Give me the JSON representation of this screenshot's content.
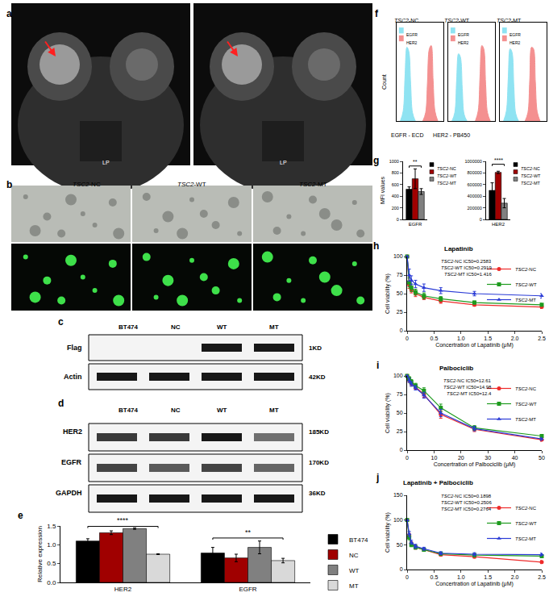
{
  "mri": {
    "panel": "a",
    "images": [
      {
        "label": "LP"
      },
      {
        "label": "LP"
      }
    ]
  },
  "microscopy": {
    "panel": "b",
    "columns": [
      "TSC2-NC",
      "TSC2-WT",
      "TSC2-MT"
    ]
  },
  "blots": [
    {
      "panel": "c",
      "lanes": [
        "BT474",
        "NC",
        "WT",
        "MT"
      ],
      "rows": [
        {
          "name": "Flag",
          "size": "1KD",
          "bands": [
            0,
            0,
            1,
            1
          ]
        },
        {
          "name": "Actin",
          "size": "42KD",
          "bands": [
            1,
            1,
            1,
            1
          ]
        }
      ]
    },
    {
      "panel": "d",
      "lanes": [
        "BT474",
        "NC",
        "WT",
        "MT"
      ],
      "rows": [
        {
          "name": "HER2",
          "size": "185KD",
          "bands": [
            0.85,
            0.85,
            1,
            0.6
          ]
        },
        {
          "name": "EGFR",
          "size": "170KD",
          "bands": [
            0.8,
            0.7,
            0.8,
            0.65
          ]
        },
        {
          "name": "GAPDH",
          "size": "36KD",
          "bands": [
            1,
            1,
            1,
            1
          ]
        }
      ]
    }
  ],
  "chart_data": [
    {
      "panel": "e",
      "type": "bar",
      "categories": [
        "HER2",
        "EGFR"
      ],
      "ylabel": "Relative expression",
      "ylim": [
        0,
        1.5
      ],
      "yticks": [
        {
          "value": 0,
          "label": "0.0"
        },
        {
          "value": 0.5,
          "label": "0.5"
        },
        {
          "value": 1,
          "label": "1.0"
        },
        {
          "value": 1.5,
          "label": "1.5"
        }
      ],
      "series": [
        {
          "name": "BT474",
          "color": "#000000",
          "values": [
            1.1,
            0.78
          ],
          "errors": [
            0.06,
            0.15
          ]
        },
        {
          "name": "NC",
          "color": "#a00000",
          "values": [
            1.32,
            0.65
          ],
          "errors": [
            0.05,
            0.1
          ]
        },
        {
          "name": "WT",
          "color": "#808080",
          "values": [
            1.43,
            0.93
          ],
          "errors": [
            0.02,
            0.17
          ]
        },
        {
          "name": "MT",
          "color": "#d9d9d9",
          "values": [
            0.75,
            0.58
          ],
          "errors": [
            0.01,
            0.06
          ]
        }
      ],
      "annotations": [
        {
          "text": "****",
          "category": "HER2",
          "y": 1.49
        },
        {
          "text": "**",
          "category": "EGFR",
          "y": 1.18
        }
      ],
      "legend": "right"
    },
    {
      "panel": "f",
      "type": "area",
      "ylabel": "Count",
      "xlabel": "EGFR - ECD      HER2 - PB450",
      "xlim": [
        1,
        6
      ],
      "ylim": [
        0,
        120
      ],
      "tick_labels": false,
      "legend": "upper left",
      "panels": [
        {
          "title": "TSC2-NC",
          "series": [
            {
              "name": "EGFR",
              "color": "#8fe3f2",
              "x": [
                1.4,
                1.7,
                1.9,
                2.1,
                2.3,
                2.5,
                2.7,
                3.0
              ],
              "values": [
                0,
                12,
                55,
                90,
                85,
                45,
                10,
                0
              ]
            },
            {
              "name": "HER2",
              "color": "#f49090",
              "x": [
                3.8,
                4.1,
                4.3,
                4.5,
                4.7,
                4.9,
                5.1,
                5.4
              ],
              "values": [
                0,
                10,
                48,
                88,
                92,
                50,
                12,
                0
              ]
            }
          ]
        },
        {
          "title": "TSC2-WT",
          "series": [
            {
              "name": "EGFR",
              "color": "#8fe3f2",
              "x": [
                1.4,
                1.7,
                1.9,
                2.1,
                2.3,
                2.5,
                2.7,
                3.0
              ],
              "values": [
                0,
                10,
                50,
                82,
                78,
                40,
                8,
                0
              ]
            },
            {
              "name": "HER2",
              "color": "#f49090",
              "x": [
                3.9,
                4.2,
                4.4,
                4.6,
                4.8,
                5.0,
                5.2,
                5.5
              ],
              "values": [
                0,
                12,
                55,
                92,
                88,
                45,
                10,
                0
              ]
            }
          ]
        },
        {
          "title": "TSC2-MT",
          "series": [
            {
              "name": "EGFR",
              "color": "#8fe3f2",
              "x": [
                1.4,
                1.7,
                1.9,
                2.1,
                2.3,
                2.5,
                2.7,
                3.0
              ],
              "values": [
                0,
                12,
                52,
                88,
                84,
                42,
                9,
                0
              ]
            },
            {
              "name": "HER2",
              "color": "#f49090",
              "x": [
                3.7,
                4.0,
                4.2,
                4.4,
                4.6,
                4.8,
                5.0,
                5.3
              ],
              "values": [
                0,
                10,
                50,
                90,
                88,
                48,
                11,
                0
              ]
            }
          ]
        }
      ]
    },
    {
      "panel": "g",
      "type": "bar",
      "categories": [
        "EGFR"
      ],
      "ylabel": "MFI values",
      "ylim": [
        0,
        1000
      ],
      "yticks": [
        0,
        200,
        400,
        600,
        800,
        1000
      ],
      "series": [
        {
          "name": "TSC2-NC",
          "color": "#000000",
          "values": [
            520
          ],
          "errors": [
            40
          ]
        },
        {
          "name": "TSC2-WT",
          "color": "#a00000",
          "values": [
            700
          ],
          "errors": [
            170
          ]
        },
        {
          "name": "TSC2-MT",
          "color": "#808080",
          "values": [
            480
          ],
          "errors": [
            50
          ]
        }
      ],
      "annotations": [
        {
          "text": "**",
          "category": "EGFR",
          "y": 920
        }
      ],
      "legend": "right"
    },
    {
      "panel": "g",
      "type": "bar",
      "categories": [
        "HER2"
      ],
      "ylim": [
        0,
        1000000
      ],
      "yticks": [
        0,
        200000,
        400000,
        600000,
        800000,
        1000000
      ],
      "series": [
        {
          "name": "TSC2-NC",
          "color": "#000000",
          "values": [
            500000
          ],
          "errors": [
            130000
          ]
        },
        {
          "name": "TSC2-WT",
          "color": "#a00000",
          "values": [
            810000
          ],
          "errors": [
            20000
          ]
        },
        {
          "name": "TSC2-MT",
          "color": "#808080",
          "values": [
            280000
          ],
          "errors": [
            80000
          ]
        }
      ],
      "annotations": [
        {
          "text": "****",
          "category": "HER2",
          "y": 950000
        }
      ],
      "legend": "right"
    },
    {
      "panel": "h",
      "type": "line",
      "title": "Lapatinib",
      "xlabel": "Concertration of Lapatinib (μM)",
      "ylabel": "Cell viability (%)",
      "x": [
        0,
        0.039,
        0.078,
        0.156,
        0.3125,
        0.625,
        1.25,
        2.5
      ],
      "xlim": [
        0,
        2.5
      ],
      "xticks": [
        0,
        0.5,
        {
          "value": 1,
          "label": "1.0"
        },
        1.5,
        {
          "value": 2,
          "label": "2.0"
        },
        2.5
      ],
      "ylim": [
        0,
        100
      ],
      "yticks": [
        0,
        25,
        50,
        75,
        100
      ],
      "series": [
        {
          "name": "TSC2-NC",
          "color": "#ee2a2a",
          "marker": "circle",
          "values": [
            100,
            62,
            55,
            50,
            45,
            40,
            35,
            32
          ],
          "errors": [
            0,
            5,
            4,
            4,
            3,
            3,
            2,
            2
          ]
        },
        {
          "name": "TSC2-WT",
          "color": "#1e9b1e",
          "marker": "square",
          "values": [
            100,
            65,
            58,
            52,
            47,
            43,
            38,
            35
          ],
          "errors": [
            0,
            6,
            5,
            4,
            4,
            3,
            2,
            2
          ]
        },
        {
          "name": "TSC2-MT",
          "color": "#2a3bd6",
          "marker": "triangle-up",
          "values": [
            100,
            75,
            68,
            63,
            58,
            54,
            50,
            47
          ],
          "errors": [
            0,
            8,
            6,
            5,
            5,
            4,
            3,
            3
          ]
        }
      ],
      "annotations": [
        "TSC2-NC IC50=0.2583",
        "TSC2-WT IC50=0.2919",
        "TSC2-MT IC50=1.416"
      ],
      "legend": "upper right"
    },
    {
      "panel": "i",
      "type": "line",
      "title": "Palbociclib",
      "xlabel": "Concertration of Palbociclib (μM)",
      "ylabel": "Cell viability (%)",
      "x": [
        0,
        0.78125,
        1.5625,
        3.125,
        6.25,
        12.5,
        25,
        50
      ],
      "xlim": [
        0,
        50
      ],
      "xticks": [
        0,
        10,
        20,
        30,
        40,
        50
      ],
      "ylim": [
        0,
        100
      ],
      "yticks": [
        0,
        25,
        50,
        75,
        100
      ],
      "series": [
        {
          "name": "TSC2-NC",
          "color": "#ee2a2a",
          "marker": "circle",
          "values": [
            100,
            95,
            90,
            85,
            75,
            48,
            28,
            14
          ],
          "errors": [
            0,
            3,
            3,
            3,
            4,
            5,
            3,
            2
          ]
        },
        {
          "name": "TSC2-WT",
          "color": "#1e9b1e",
          "marker": "square",
          "values": [
            100,
            96,
            92,
            87,
            80,
            57,
            30,
            19
          ],
          "errors": [
            0,
            3,
            3,
            3,
            4,
            5,
            3,
            2
          ]
        },
        {
          "name": "TSC2-MT",
          "color": "#2a3bd6",
          "marker": "triangle-up",
          "values": [
            100,
            94,
            89,
            84,
            74,
            50,
            29,
            15
          ],
          "errors": [
            0,
            3,
            3,
            3,
            4,
            5,
            3,
            2
          ]
        }
      ],
      "annotations": [
        "TSC2-NC IC50=12.61",
        "TSC2-WT IC50=14.98",
        "TSC2-MT IC50=12.4"
      ],
      "legend": "upper right"
    },
    {
      "panel": "j",
      "type": "line",
      "title": "Lapatinib + Palbociclib",
      "xlabel": "Concertration of Lapatinib (μM)",
      "ylabel": "Cell viability (%)",
      "x": [
        0,
        0.039,
        0.078,
        0.156,
        0.3125,
        0.625,
        1.25,
        2.5
      ],
      "xlim": [
        0,
        2.5
      ],
      "xticks": [
        0,
        0.5,
        {
          "value": 1,
          "label": "1.0"
        },
        1.5,
        {
          "value": 2,
          "label": "2.0"
        },
        2.5
      ],
      "ylim": [
        0,
        150
      ],
      "yticks": [
        0,
        50,
        100,
        150
      ],
      "series": [
        {
          "name": "TSC2-NC",
          "color": "#ee2a2a",
          "marker": "circle",
          "values": [
            100,
            68,
            52,
            45,
            40,
            30,
            26,
            15
          ],
          "errors": [
            0,
            5,
            4,
            4,
            3,
            3,
            3,
            3
          ]
        },
        {
          "name": "TSC2-WT",
          "color": "#1e9b1e",
          "marker": "square",
          "values": [
            100,
            65,
            50,
            45,
            40,
            32,
            29,
            27
          ],
          "errors": [
            0,
            5,
            4,
            4,
            3,
            3,
            3,
            3
          ]
        },
        {
          "name": "TSC2-MT",
          "color": "#2a3bd6",
          "marker": "triangle-up",
          "values": [
            100,
            72,
            55,
            47,
            42,
            33,
            31,
            30
          ],
          "errors": [
            0,
            5,
            4,
            4,
            3,
            3,
            3,
            3
          ]
        }
      ],
      "annotations": [
        "TSC2-NC IC50=0.1898",
        "TSC2-WT IC50=0.2506",
        "TSC2-MT IC50=0.2764"
      ],
      "legend": "upper right"
    }
  ]
}
